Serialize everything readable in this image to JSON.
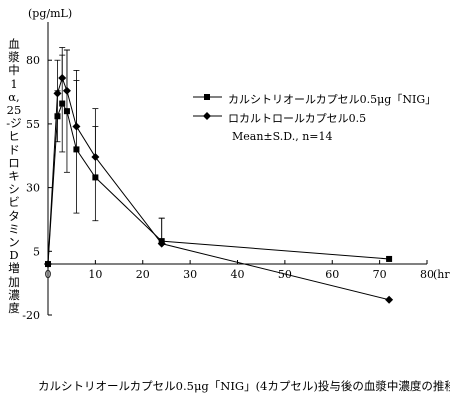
{
  "chart_data": {
    "type": "line",
    "unit_label": "(pg/mL)",
    "ylabel": "血漿中1α,25-ジヒドロキシビタミンD増加濃度",
    "xunit": "(hr)",
    "caption": "カルシトリオールカプセル0.5μg「NIG」(4カプセル)投与後の血漿中濃度の推移",
    "xlim": [
      0,
      80
    ],
    "ylim": [
      -20,
      95
    ],
    "x_ticks": [
      0,
      10,
      20,
      30,
      40,
      50,
      60,
      70,
      80
    ],
    "y_ticks": [
      -20,
      5,
      30,
      55,
      80
    ],
    "annotation": "Mean±S.D., n=14",
    "series": [
      {
        "name": "カルシトリオールカプセル0.5μg「NIG」",
        "marker": "square",
        "x": [
          0,
          2,
          3,
          4,
          6,
          10,
          24,
          72
        ],
        "y": [
          0,
          58,
          63,
          60,
          45,
          34,
          9,
          2
        ],
        "sd_upper": [
          0,
          68,
          82,
          84,
          72,
          54,
          18,
          2
        ],
        "sd_lower": [
          0,
          48,
          44,
          36,
          20,
          17,
          9,
          2
        ]
      },
      {
        "name": "ロカルトロールカプセル0.5",
        "marker": "diamond",
        "x": [
          0,
          2,
          3,
          4,
          6,
          10,
          24,
          72
        ],
        "y": [
          0,
          67,
          73,
          68,
          54,
          42,
          8,
          -14
        ],
        "sd_upper": [
          0,
          80,
          85,
          84,
          76,
          61,
          18,
          -14
        ],
        "sd_lower": [
          0,
          67,
          73,
          68,
          54,
          42,
          8,
          -14
        ]
      }
    ]
  }
}
